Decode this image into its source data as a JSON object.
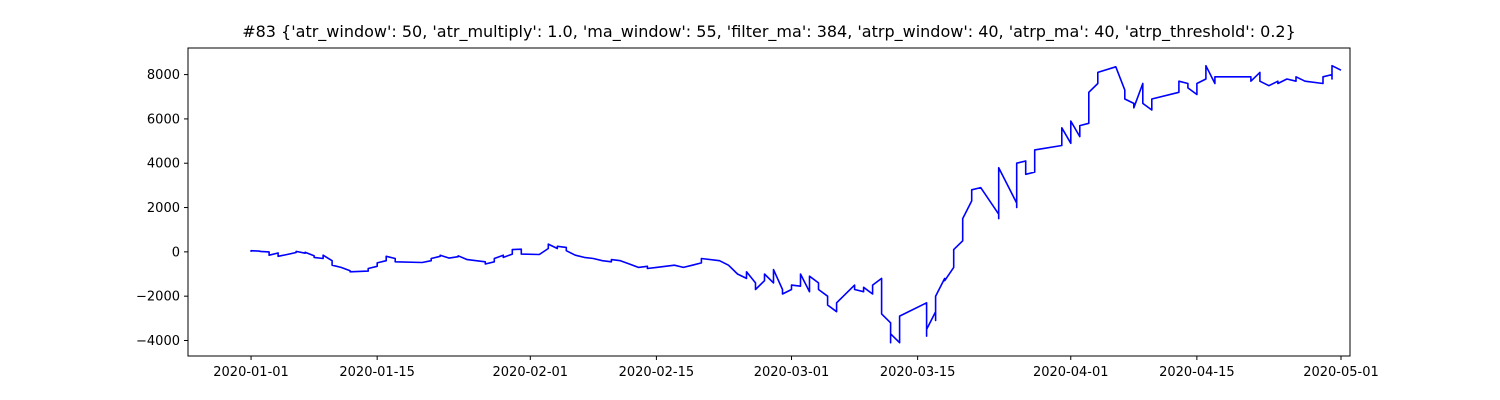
{
  "chart_data": {
    "type": "line",
    "title": "#83 {'atr_window': 50, 'atr_multiply': 1.0, 'ma_window': 55, 'filter_ma': 384, 'atrp_window': 40, 'atrp_ma': 40, 'atrp_threshold': 0.2}",
    "xlabel": "",
    "ylabel": "",
    "x_axis": {
      "type": "date",
      "range": [
        "2019-12-25",
        "2020-05-02"
      ],
      "ticks": [
        "2020-01-01",
        "2020-01-15",
        "2020-02-01",
        "2020-02-15",
        "2020-03-01",
        "2020-03-15",
        "2020-04-01",
        "2020-04-15",
        "2020-05-01"
      ]
    },
    "y_axis": {
      "range": [
        -4700,
        9200
      ],
      "ticks": [
        -4000,
        -2000,
        0,
        2000,
        4000,
        6000,
        8000
      ]
    },
    "grid": false,
    "legend": "none",
    "series": [
      {
        "color": "#0000ff",
        "points": [
          [
            "2020-01-01",
            0
          ],
          [
            "2020-01-01",
            50
          ],
          [
            "2020-01-02",
            30
          ],
          [
            "2020-01-02",
            20
          ],
          [
            "2020-01-03",
            0
          ],
          [
            "2020-01-03",
            -150
          ],
          [
            "2020-01-04",
            -50
          ],
          [
            "2020-01-04",
            -200
          ],
          [
            "2020-01-05",
            -120
          ],
          [
            "2020-01-06",
            -30
          ],
          [
            "2020-01-06",
            20
          ],
          [
            "2020-01-07",
            -60
          ],
          [
            "2020-01-07",
            -20
          ],
          [
            "2020-01-08",
            -180
          ],
          [
            "2020-01-08",
            -250
          ],
          [
            "2020-01-09",
            -300
          ],
          [
            "2020-01-09",
            -150
          ],
          [
            "2020-01-10",
            -400
          ],
          [
            "2020-01-10",
            -600
          ],
          [
            "2020-01-11",
            -700
          ],
          [
            "2020-01-12",
            -850
          ],
          [
            "2020-01-12",
            -900
          ],
          [
            "2020-01-14",
            -870
          ],
          [
            "2020-01-14",
            -750
          ],
          [
            "2020-01-15",
            -650
          ],
          [
            "2020-01-15",
            -500
          ],
          [
            "2020-01-16",
            -400
          ],
          [
            "2020-01-16",
            -200
          ],
          [
            "2020-01-17",
            -300
          ],
          [
            "2020-01-17",
            -450
          ],
          [
            "2020-01-20",
            -480
          ],
          [
            "2020-01-21",
            -400
          ],
          [
            "2020-01-21",
            -300
          ],
          [
            "2020-01-22",
            -200
          ],
          [
            "2020-01-22",
            -150
          ],
          [
            "2020-01-23",
            -280
          ],
          [
            "2020-01-24",
            -220
          ],
          [
            "2020-01-24",
            -180
          ],
          [
            "2020-01-25",
            -350
          ],
          [
            "2020-01-26",
            -400
          ],
          [
            "2020-01-27",
            -450
          ],
          [
            "2020-01-27",
            -550
          ],
          [
            "2020-01-28",
            -450
          ],
          [
            "2020-01-28",
            -300
          ],
          [
            "2020-01-29",
            -150
          ],
          [
            "2020-01-29",
            -250
          ],
          [
            "2020-01-30",
            -100
          ],
          [
            "2020-01-30",
            100
          ],
          [
            "2020-01-31",
            120
          ],
          [
            "2020-01-31",
            -100
          ],
          [
            "2020-02-02",
            -120
          ],
          [
            "2020-02-03",
            150
          ],
          [
            "2020-02-03",
            350
          ],
          [
            "2020-02-04",
            150
          ],
          [
            "2020-02-04",
            250
          ],
          [
            "2020-02-05",
            200
          ],
          [
            "2020-02-05",
            50
          ],
          [
            "2020-02-06",
            -150
          ],
          [
            "2020-02-07",
            -250
          ],
          [
            "2020-02-08",
            -300
          ],
          [
            "2020-02-09",
            -400
          ],
          [
            "2020-02-10",
            -450
          ],
          [
            "2020-02-10",
            -350
          ],
          [
            "2020-02-11",
            -400
          ],
          [
            "2020-02-12",
            -550
          ],
          [
            "2020-02-13",
            -700
          ],
          [
            "2020-02-14",
            -650
          ],
          [
            "2020-02-14",
            -750
          ],
          [
            "2020-02-15",
            -700
          ],
          [
            "2020-02-17",
            -600
          ],
          [
            "2020-02-18",
            -700
          ],
          [
            "2020-02-19",
            -600
          ],
          [
            "2020-02-20",
            -500
          ],
          [
            "2020-02-20",
            -300
          ],
          [
            "2020-02-22",
            -400
          ],
          [
            "2020-02-23",
            -600
          ],
          [
            "2020-02-24",
            -1000
          ],
          [
            "2020-02-25",
            -1200
          ],
          [
            "2020-02-25",
            -900
          ],
          [
            "2020-02-26",
            -1400
          ],
          [
            "2020-02-26",
            -1700
          ],
          [
            "2020-02-27",
            -1300
          ],
          [
            "2020-02-27",
            -1000
          ],
          [
            "2020-02-28",
            -1400
          ],
          [
            "2020-02-28",
            -800
          ],
          [
            "2020-02-29",
            -1700
          ],
          [
            "2020-02-29",
            -1900
          ],
          [
            "2020-03-01",
            -1700
          ],
          [
            "2020-03-01",
            -1500
          ],
          [
            "2020-03-02",
            -1550
          ],
          [
            "2020-03-02",
            -1000
          ],
          [
            "2020-03-03",
            -1800
          ],
          [
            "2020-03-03",
            -1100
          ],
          [
            "2020-03-04",
            -1400
          ],
          [
            "2020-03-04",
            -1700
          ],
          [
            "2020-03-05",
            -2000
          ],
          [
            "2020-03-05",
            -2400
          ],
          [
            "2020-03-06",
            -2700
          ],
          [
            "2020-03-06",
            -2300
          ],
          [
            "2020-03-08",
            -1500
          ],
          [
            "2020-03-08",
            -1700
          ],
          [
            "2020-03-09",
            -1800
          ],
          [
            "2020-03-09",
            -1600
          ],
          [
            "2020-03-10",
            -1900
          ],
          [
            "2020-03-10",
            -1500
          ],
          [
            "2020-03-11",
            -1200
          ],
          [
            "2020-03-11",
            -1600
          ],
          [
            "2020-03-11",
            -2800
          ],
          [
            "2020-03-12",
            -3200
          ],
          [
            "2020-03-12",
            -4100
          ],
          [
            "2020-03-12",
            -3700
          ],
          [
            "2020-03-13",
            -4100
          ],
          [
            "2020-03-13",
            -2900
          ],
          [
            "2020-03-16",
            -2300
          ],
          [
            "2020-03-16",
            -3800
          ],
          [
            "2020-03-16",
            -3500
          ],
          [
            "2020-03-17",
            -2700
          ],
          [
            "2020-03-17",
            -3100
          ],
          [
            "2020-03-17",
            -2000
          ],
          [
            "2020-03-18",
            -1200
          ],
          [
            "2020-03-18",
            -1300
          ],
          [
            "2020-03-19",
            -700
          ],
          [
            "2020-03-19",
            -600
          ],
          [
            "2020-03-19",
            100
          ],
          [
            "2020-03-20",
            500
          ],
          [
            "2020-03-20",
            1500
          ],
          [
            "2020-03-21",
            2300
          ],
          [
            "2020-03-21",
            2800
          ],
          [
            "2020-03-22",
            2900
          ],
          [
            "2020-03-24",
            1700
          ],
          [
            "2020-03-24",
            1500
          ],
          [
            "2020-03-24",
            3800
          ],
          [
            "2020-03-25",
            3000
          ],
          [
            "2020-03-26",
            2200
          ],
          [
            "2020-03-26",
            2000
          ],
          [
            "2020-03-26",
            4000
          ],
          [
            "2020-03-27",
            4100
          ],
          [
            "2020-03-27",
            3500
          ],
          [
            "2020-03-28",
            3600
          ],
          [
            "2020-03-28",
            4000
          ],
          [
            "2020-03-28",
            4600
          ],
          [
            "2020-03-31",
            4800
          ],
          [
            "2020-03-31",
            5600
          ],
          [
            "2020-04-01",
            4900
          ],
          [
            "2020-04-01",
            5900
          ],
          [
            "2020-04-02",
            5200
          ],
          [
            "2020-04-02",
            5700
          ],
          [
            "2020-04-03",
            5800
          ],
          [
            "2020-04-03",
            7200
          ],
          [
            "2020-04-04",
            7600
          ],
          [
            "2020-04-04",
            8100
          ],
          [
            "2020-04-06",
            8350
          ],
          [
            "2020-04-07",
            7300
          ],
          [
            "2020-04-07",
            6900
          ],
          [
            "2020-04-08",
            6700
          ],
          [
            "2020-04-08",
            6500
          ],
          [
            "2020-04-09",
            7600
          ],
          [
            "2020-04-09",
            6700
          ],
          [
            "2020-04-10",
            6400
          ],
          [
            "2020-04-10",
            6900
          ],
          [
            "2020-04-13",
            7200
          ],
          [
            "2020-04-13",
            7500
          ],
          [
            "2020-04-13",
            7700
          ],
          [
            "2020-04-14",
            7600
          ],
          [
            "2020-04-14",
            7400
          ],
          [
            "2020-04-15",
            7100
          ],
          [
            "2020-04-15",
            7600
          ],
          [
            "2020-04-16",
            7800
          ],
          [
            "2020-04-16",
            8400
          ],
          [
            "2020-04-17",
            7600
          ],
          [
            "2020-04-17",
            7900
          ],
          [
            "2020-04-21",
            7900
          ],
          [
            "2020-04-21",
            7700
          ],
          [
            "2020-04-22",
            8100
          ],
          [
            "2020-04-22",
            7700
          ],
          [
            "2020-04-23",
            7500
          ],
          [
            "2020-04-24",
            7700
          ],
          [
            "2020-04-24",
            7600
          ],
          [
            "2020-04-25",
            7800
          ],
          [
            "2020-04-26",
            7700
          ],
          [
            "2020-04-26",
            7900
          ],
          [
            "2020-04-27",
            7700
          ],
          [
            "2020-04-29",
            7600
          ],
          [
            "2020-04-29",
            7900
          ],
          [
            "2020-04-30",
            8000
          ],
          [
            "2020-04-30",
            7800
          ],
          [
            "2020-04-30",
            8100
          ],
          [
            "2020-04-30",
            8400
          ],
          [
            "2020-05-01",
            8200
          ]
        ]
      }
    ]
  }
}
